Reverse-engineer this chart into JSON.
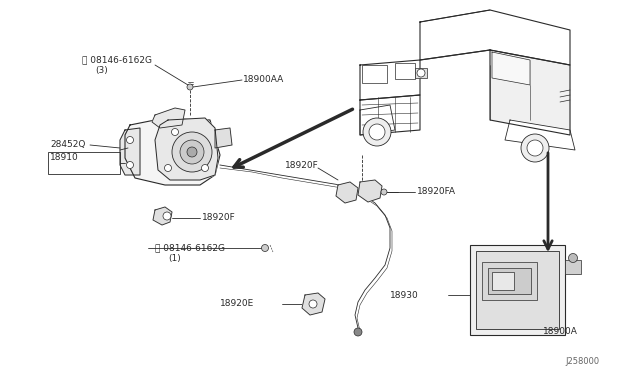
{
  "background_color": "#ffffff",
  "line_color": "#2a2a2a",
  "fig_width": 6.4,
  "fig_height": 3.72,
  "dpi": 100,
  "labels": {
    "s_label_top": "Ⓢ 08146-6162G",
    "s_label_top_sub": "(3)",
    "label_18900AA": "18900AA",
    "label_18910": "18910",
    "label_28452Q": "28452Q",
    "label_18920F_left": "18920F",
    "label_18920F_mid": "18920F",
    "label_18920FA": "18920FA",
    "label_s_bottom": "Ⓢ 08146-6162G",
    "label_s_bottom_sub": "(1)",
    "label_18920E": "18920E",
    "label_18930": "18930",
    "label_18900A": "18900A",
    "diagram_code": "J258000"
  }
}
